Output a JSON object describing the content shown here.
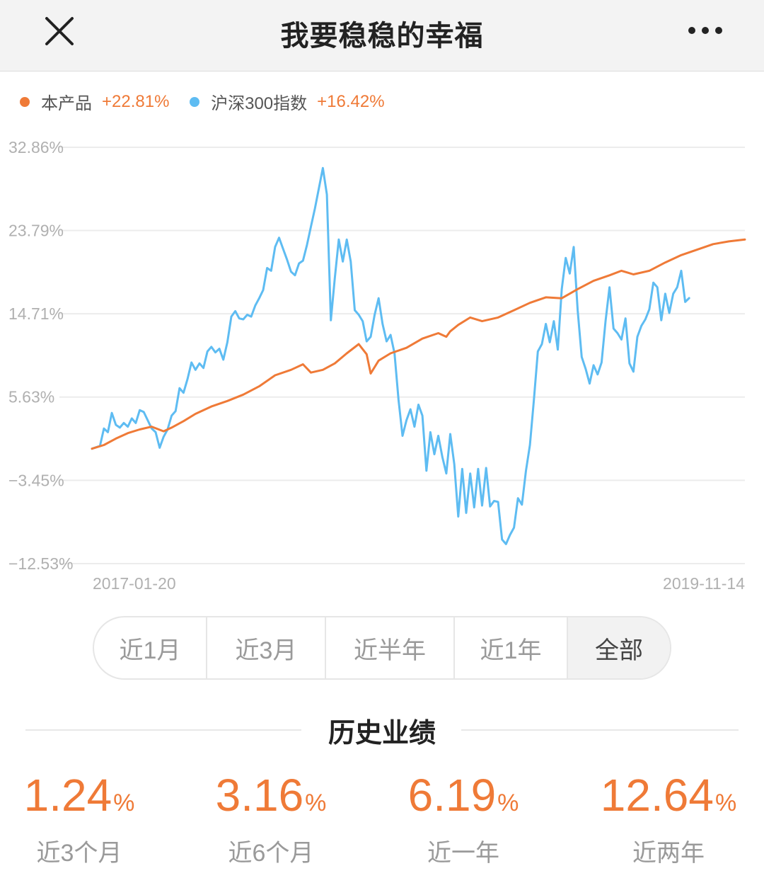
{
  "header": {
    "title": "我要稳稳的幸福"
  },
  "colors": {
    "product": "#ef7a37",
    "index": "#5ebcf2",
    "grid": "#ececec",
    "axis_text": "#b0b0b0"
  },
  "legend": [
    {
      "name": "本产品",
      "value": "+22.81%"
    },
    {
      "name": "沪深300指数",
      "value": "+16.42%"
    }
  ],
  "chart_data": {
    "type": "line",
    "title": "",
    "xlabel": "",
    "ylabel": "",
    "x_start": "2017-01-20",
    "x_end": "2019-11-14",
    "x_tick_labels": [
      "2017-01-20",
      "2019-11-14"
    ],
    "y_ticks": [
      32.86,
      23.79,
      14.71,
      5.63,
      -3.45,
      -12.53
    ],
    "y_tick_labels": [
      "32.86%",
      "23.79%",
      "14.71%",
      "5.63%",
      "−3.45%",
      "−12.53%"
    ],
    "ylim": [
      -12.53,
      32.86
    ],
    "grid": true,
    "legend_position": "top-left",
    "series": [
      {
        "name": "本产品",
        "points": [
          [
            0,
            0.0
          ],
          [
            3,
            0.4
          ],
          [
            6,
            1.1
          ],
          [
            9,
            1.7
          ],
          [
            12,
            2.1
          ],
          [
            15,
            2.4
          ],
          [
            18,
            1.9
          ],
          [
            20,
            2.3
          ],
          [
            23,
            3.0
          ],
          [
            26,
            3.8
          ],
          [
            30,
            4.6
          ],
          [
            34,
            5.2
          ],
          [
            38,
            5.9
          ],
          [
            42,
            6.8
          ],
          [
            46,
            8.0
          ],
          [
            50,
            8.6
          ],
          [
            53,
            9.2
          ],
          [
            55,
            8.3
          ],
          [
            58,
            8.6
          ],
          [
            61,
            9.3
          ],
          [
            64,
            10.4
          ],
          [
            67,
            11.4
          ],
          [
            69,
            10.3
          ],
          [
            70,
            8.2
          ],
          [
            72,
            9.6
          ],
          [
            75,
            10.4
          ],
          [
            79,
            11.0
          ],
          [
            83,
            12.0
          ],
          [
            87,
            12.6
          ],
          [
            89,
            12.2
          ],
          [
            90,
            12.8
          ],
          [
            92,
            13.5
          ],
          [
            95,
            14.3
          ],
          [
            98,
            13.9
          ],
          [
            102,
            14.3
          ],
          [
            106,
            15.1
          ],
          [
            110,
            15.9
          ],
          [
            114,
            16.5
          ],
          [
            118,
            16.4
          ],
          [
            122,
            17.4
          ],
          [
            126,
            18.3
          ],
          [
            130,
            18.9
          ],
          [
            133,
            19.4
          ],
          [
            136,
            19.0
          ],
          [
            140,
            19.4
          ],
          [
            144,
            20.3
          ],
          [
            148,
            21.1
          ],
          [
            152,
            21.7
          ],
          [
            156,
            22.3
          ],
          [
            160,
            22.6
          ],
          [
            164,
            22.81
          ]
        ]
      },
      {
        "name": "沪深300指数",
        "points": [
          [
            0,
            0.0
          ],
          [
            2,
            0.3
          ],
          [
            3,
            2.2
          ],
          [
            4,
            1.8
          ],
          [
            5,
            3.9
          ],
          [
            6,
            2.6
          ],
          [
            7,
            2.3
          ],
          [
            8,
            2.8
          ],
          [
            9,
            2.4
          ],
          [
            10,
            3.3
          ],
          [
            11,
            2.8
          ],
          [
            12,
            4.2
          ],
          [
            13,
            4.0
          ],
          [
            14,
            3.1
          ],
          [
            15,
            2.2
          ],
          [
            16,
            1.8
          ],
          [
            17,
            0.1
          ],
          [
            18,
            1.3
          ],
          [
            19,
            2.1
          ],
          [
            20,
            3.6
          ],
          [
            21,
            4.1
          ],
          [
            22,
            6.6
          ],
          [
            23,
            6.1
          ],
          [
            24,
            7.6
          ],
          [
            25,
            9.4
          ],
          [
            26,
            8.6
          ],
          [
            27,
            9.3
          ],
          [
            28,
            8.8
          ],
          [
            29,
            10.6
          ],
          [
            30,
            11.1
          ],
          [
            31,
            10.5
          ],
          [
            32,
            10.9
          ],
          [
            33,
            9.7
          ],
          [
            34,
            11.6
          ],
          [
            35,
            14.4
          ],
          [
            36,
            15.0
          ],
          [
            37,
            14.2
          ],
          [
            38,
            14.1
          ],
          [
            39,
            14.6
          ],
          [
            40,
            14.4
          ],
          [
            41,
            15.6
          ],
          [
            42,
            16.4
          ],
          [
            43,
            17.3
          ],
          [
            44,
            19.7
          ],
          [
            45,
            19.4
          ],
          [
            46,
            22.0
          ],
          [
            47,
            23.0
          ],
          [
            48,
            21.8
          ],
          [
            49,
            20.6
          ],
          [
            50,
            19.3
          ],
          [
            51,
            18.9
          ],
          [
            52,
            20.2
          ],
          [
            53,
            20.5
          ],
          [
            54,
            22.2
          ],
          [
            55,
            24.2
          ],
          [
            56,
            26.2
          ],
          [
            57,
            28.4
          ],
          [
            58,
            30.6
          ],
          [
            59,
            27.7
          ],
          [
            60,
            14.0
          ],
          [
            61,
            18.6
          ],
          [
            62,
            22.8
          ],
          [
            63,
            20.4
          ],
          [
            64,
            22.8
          ],
          [
            65,
            20.4
          ],
          [
            66,
            15.1
          ],
          [
            67,
            14.6
          ],
          [
            68,
            13.9
          ],
          [
            69,
            11.7
          ],
          [
            70,
            12.2
          ],
          [
            71,
            14.6
          ],
          [
            72,
            16.4
          ],
          [
            73,
            13.6
          ],
          [
            74,
            11.7
          ],
          [
            75,
            12.4
          ],
          [
            76,
            10.4
          ],
          [
            77,
            5.3
          ],
          [
            78,
            1.4
          ],
          [
            79,
            3.1
          ],
          [
            80,
            4.3
          ],
          [
            81,
            2.4
          ],
          [
            82,
            4.8
          ],
          [
            83,
            3.6
          ],
          [
            84,
            -2.4
          ],
          [
            85,
            1.8
          ],
          [
            86,
            -0.6
          ],
          [
            87,
            1.4
          ],
          [
            88,
            -0.9
          ],
          [
            89,
            -2.7
          ],
          [
            90,
            1.6
          ],
          [
            91,
            -1.7
          ],
          [
            92,
            -7.4
          ],
          [
            93,
            -2.2
          ],
          [
            94,
            -7.0
          ],
          [
            95,
            -2.7
          ],
          [
            96,
            -6.4
          ],
          [
            97,
            -2.2
          ],
          [
            98,
            -6.2
          ],
          [
            99,
            -2.1
          ],
          [
            100,
            -6.3
          ],
          [
            101,
            -5.7
          ],
          [
            102,
            -5.8
          ],
          [
            103,
            -9.9
          ],
          [
            104,
            -10.4
          ],
          [
            105,
            -9.4
          ],
          [
            106,
            -8.6
          ],
          [
            107,
            -5.4
          ],
          [
            108,
            -6.1
          ],
          [
            109,
            -2.4
          ],
          [
            110,
            0.4
          ],
          [
            111,
            5.3
          ],
          [
            112,
            10.6
          ],
          [
            113,
            11.4
          ],
          [
            114,
            13.6
          ],
          [
            115,
            11.6
          ],
          [
            116,
            13.9
          ],
          [
            117,
            10.8
          ],
          [
            118,
            17.4
          ],
          [
            119,
            20.8
          ],
          [
            120,
            19.1
          ],
          [
            121,
            22.0
          ],
          [
            122,
            15.1
          ],
          [
            123,
            10.0
          ],
          [
            124,
            8.7
          ],
          [
            125,
            7.1
          ],
          [
            126,
            9.1
          ],
          [
            127,
            8.1
          ],
          [
            128,
            9.4
          ],
          [
            129,
            13.9
          ],
          [
            130,
            17.6
          ],
          [
            131,
            13.1
          ],
          [
            132,
            12.6
          ],
          [
            133,
            11.9
          ],
          [
            134,
            14.2
          ],
          [
            135,
            9.3
          ],
          [
            136,
            8.4
          ],
          [
            137,
            12.2
          ],
          [
            138,
            13.4
          ],
          [
            139,
            14.1
          ],
          [
            140,
            15.2
          ],
          [
            141,
            18.1
          ],
          [
            142,
            17.6
          ],
          [
            143,
            14.0
          ],
          [
            144,
            16.9
          ],
          [
            145,
            14.8
          ],
          [
            146,
            16.9
          ],
          [
            147,
            17.6
          ],
          [
            148,
            19.4
          ],
          [
            149,
            16.0
          ],
          [
            150,
            16.42
          ]
        ]
      }
    ]
  },
  "tabs": [
    {
      "label": "近1月",
      "active": false
    },
    {
      "label": "近3月",
      "active": false
    },
    {
      "label": "近半年",
      "active": false
    },
    {
      "label": "近1年",
      "active": false
    },
    {
      "label": "全部",
      "active": true
    }
  ],
  "history": {
    "title": "历史业绩",
    "percent_sign": "%",
    "items": [
      {
        "value": "1.24",
        "label": "近3个月"
      },
      {
        "value": "3.16",
        "label": "近6个月"
      },
      {
        "value": "6.19",
        "label": "近一年"
      },
      {
        "value": "12.64",
        "label": "近两年"
      }
    ]
  }
}
